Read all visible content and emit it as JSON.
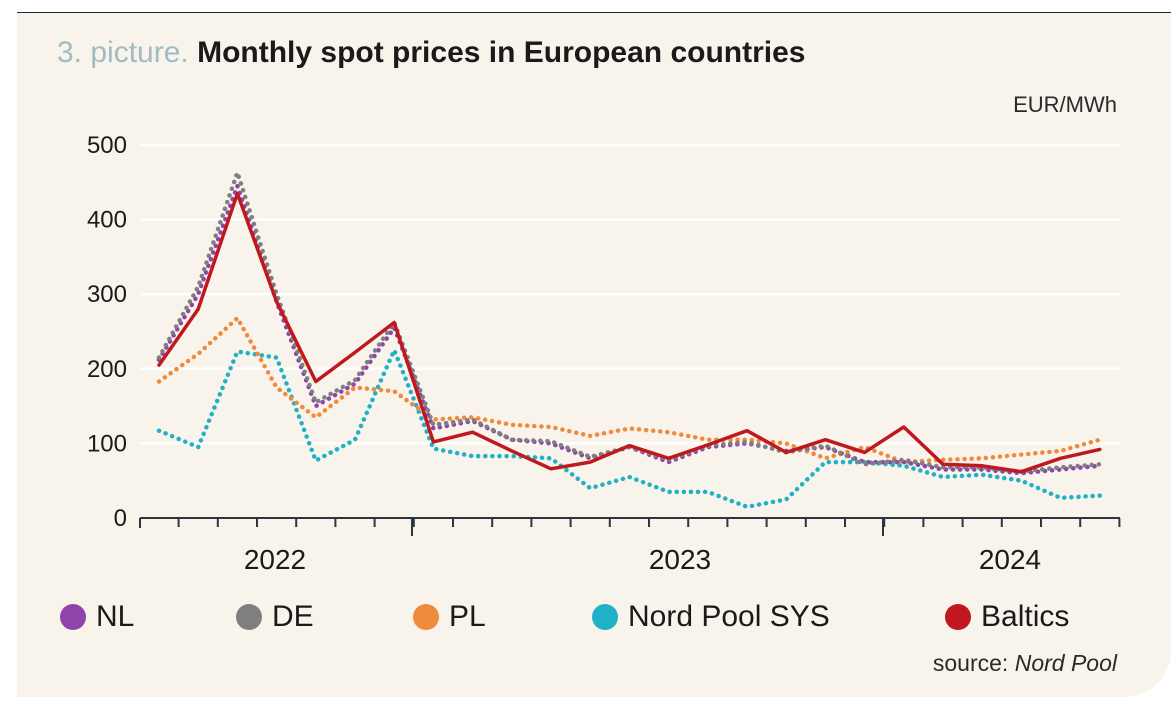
{
  "title_prefix": "3. picture.",
  "title_main": "Monthly spot prices in European countries",
  "unit": "EUR/MWh",
  "source_prefix": "source:",
  "source_name": "Nord Pool",
  "chart_data": {
    "type": "line",
    "x_labels": [
      "2022",
      "2023",
      "2024"
    ],
    "ylim": [
      0,
      500
    ],
    "yticks": [
      0,
      100,
      200,
      300,
      400,
      500
    ],
    "grid": true,
    "legend_position": "bottom",
    "series": [
      {
        "name": "NL",
        "color": "#8e44a8",
        "style": "dotted",
        "values": [
          212,
          300,
          445,
          290,
          150,
          180,
          255,
          120,
          130,
          105,
          100,
          80,
          95,
          75,
          95,
          100,
          90,
          95,
          75,
          75,
          65,
          65,
          60,
          65,
          70
        ]
      },
      {
        "name": "DE",
        "color": "#7f7f7f",
        "style": "dotted",
        "values": [
          215,
          310,
          463,
          300,
          155,
          185,
          262,
          125,
          132,
          105,
          103,
          82,
          95,
          78,
          97,
          102,
          88,
          97,
          72,
          78,
          68,
          68,
          62,
          68,
          72
        ]
      },
      {
        "name": "PL",
        "color": "#f08a3c",
        "style": "dotted",
        "values": [
          183,
          220,
          268,
          175,
          135,
          175,
          170,
          132,
          135,
          125,
          122,
          110,
          120,
          115,
          105,
          105,
          100,
          80,
          95,
          75,
          78,
          80,
          85,
          90,
          105
        ]
      },
      {
        "name": "Nord Pool SYS",
        "color": "#1fb2c6",
        "style": "dotted",
        "values": [
          117,
          95,
          223,
          215,
          77,
          105,
          225,
          93,
          83,
          83,
          80,
          40,
          55,
          35,
          35,
          15,
          25,
          75,
          75,
          70,
          55,
          58,
          50,
          27,
          30
        ]
      },
      {
        "name": "Baltics",
        "color": "#c0181f",
        "style": "solid",
        "values": [
          205,
          280,
          435,
          290,
          183,
          222,
          262,
          102,
          115,
          90,
          66,
          75,
          97,
          80,
          98,
          117,
          88,
          105,
          88,
          122,
          72,
          70,
          62,
          80,
          92
        ]
      }
    ]
  }
}
